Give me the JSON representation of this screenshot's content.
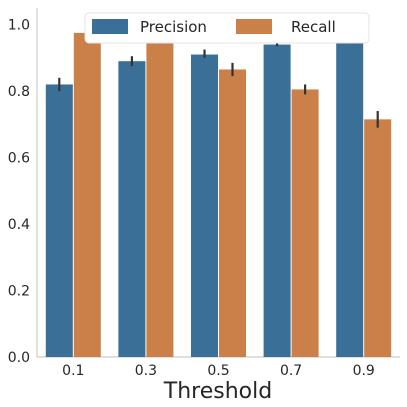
{
  "chart_data": {
    "type": "bar",
    "xlabel": "Threshold",
    "ylabel": "",
    "categories": [
      "0.1",
      "0.3",
      "0.5",
      "0.7",
      "0.9"
    ],
    "series": [
      {
        "name": "Precision",
        "color": "#3a6f98",
        "values": [
          0.82,
          0.89,
          0.91,
          0.94,
          0.95
        ],
        "err_low": [
          0.8,
          0.875,
          0.9,
          0.935,
          0.945
        ],
        "err_high": [
          0.84,
          0.905,
          0.925,
          0.95,
          0.96
        ]
      },
      {
        "name": "Recall",
        "color": "#cc8049",
        "values": [
          0.975,
          0.965,
          0.865,
          0.805,
          0.715
        ],
        "err_low": [
          0.97,
          0.955,
          0.845,
          0.79,
          0.69
        ],
        "err_high": [
          0.98,
          0.975,
          0.885,
          0.82,
          0.74
        ]
      }
    ],
    "ylim": [
      0,
      1.05
    ],
    "yticks": [
      "0.0",
      "0.2",
      "0.4",
      "0.6",
      "0.8",
      "1.0"
    ],
    "legend_position": "top-center",
    "grid": false,
    "error_bars": true
  }
}
